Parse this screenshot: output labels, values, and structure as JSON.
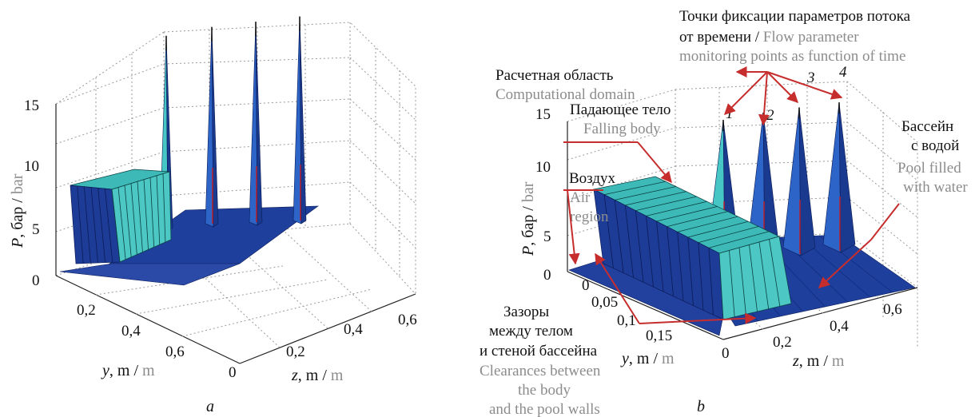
{
  "chart_data": [
    {
      "type": "3d-surface",
      "panel_label": "a",
      "zlabel": {
        "ru": "P, бар / ",
        "en": "bar"
      },
      "ylabel": {
        "ru": "y, m / ",
        "en": "m"
      },
      "xlabel": {
        "ru": "z, m / ",
        "en": "m"
      },
      "z_ticks": [
        "0",
        "5",
        "10",
        "15"
      ],
      "y_ticks": [
        "0,2",
        "0,4",
        "0,6"
      ],
      "x_ticks": [
        "0",
        "0,2",
        "0,4",
        "0,6"
      ],
      "zlim": [
        0,
        17
      ],
      "peaks": [
        {
          "point": "1",
          "z_m": 0.05,
          "pressure_bar": 15.8
        },
        {
          "point": "2",
          "z_m": 0.2,
          "pressure_bar": 16.2
        },
        {
          "point": "3",
          "z_m": 0.35,
          "pressure_bar": 16.5
        },
        {
          "point": "4",
          "z_m": 0.5,
          "pressure_bar": 16.8
        }
      ],
      "falling_body_pressure_bar": 9.3,
      "pool_pressure_bar": 1.2
    },
    {
      "type": "3d-surface",
      "panel_label": "b",
      "zlabel": {
        "ru": "P, бар / ",
        "en": "bar"
      },
      "ylabel": {
        "ru": "y, m / ",
        "en": "m"
      },
      "xlabel": {
        "ru": "z, m / ",
        "en": "m"
      },
      "z_ticks": [
        "0",
        "5",
        "10",
        "15"
      ],
      "y_ticks": [
        "0",
        "0,05",
        "0,1",
        "0,15"
      ],
      "x_ticks": [
        "0",
        "0,2",
        "0,4",
        "0,6"
      ],
      "zlim": [
        0,
        16
      ],
      "peaks": [
        {
          "point": "1",
          "z_m": 0.08,
          "pressure_bar": 14.2
        },
        {
          "point": "2",
          "z_m": 0.22,
          "pressure_bar": 15.0
        },
        {
          "point": "3",
          "z_m": 0.38,
          "pressure_bar": 15.4
        },
        {
          "point": "4",
          "z_m": 0.52,
          "pressure_bar": 15.6
        }
      ],
      "falling_body_pressure_bar": 8.6,
      "pool_pressure_bar": 1.0
    }
  ],
  "annotations": {
    "monitoring_ru_1": "Точки фиксации параметров потока",
    "monitoring_ru_2": "от времени / ",
    "monitoring_en_1": "Flow parameter",
    "monitoring_en_2": "monitoring points as function of time",
    "domain_ru": "Расчетная область",
    "domain_en": "Computational domain",
    "body_ru": "Падающее тело",
    "body_en": "Falling body",
    "pool_ru_1": "Бассейн",
    "pool_ru_2": "с водой",
    "pool_en_1": "Pool filled",
    "pool_en_2": "with water",
    "air_ru": "Воздух",
    "air_en_1": "Air",
    "air_en_2": "region",
    "clear_ru_1": "Зазоры",
    "clear_ru_2": "между телом",
    "clear_ru_3": "и стеной бассейна",
    "clear_en_1": "Clearances between",
    "clear_en_2": "the body",
    "clear_en_3": "and the pool walls",
    "point_labels": [
      "1",
      "2",
      "3",
      "4"
    ]
  },
  "colors": {
    "pool": "#1f3f9c",
    "cyan": "#47c6c6",
    "spike_blue": "#2d64c8",
    "arrow": "#c62d2d"
  }
}
